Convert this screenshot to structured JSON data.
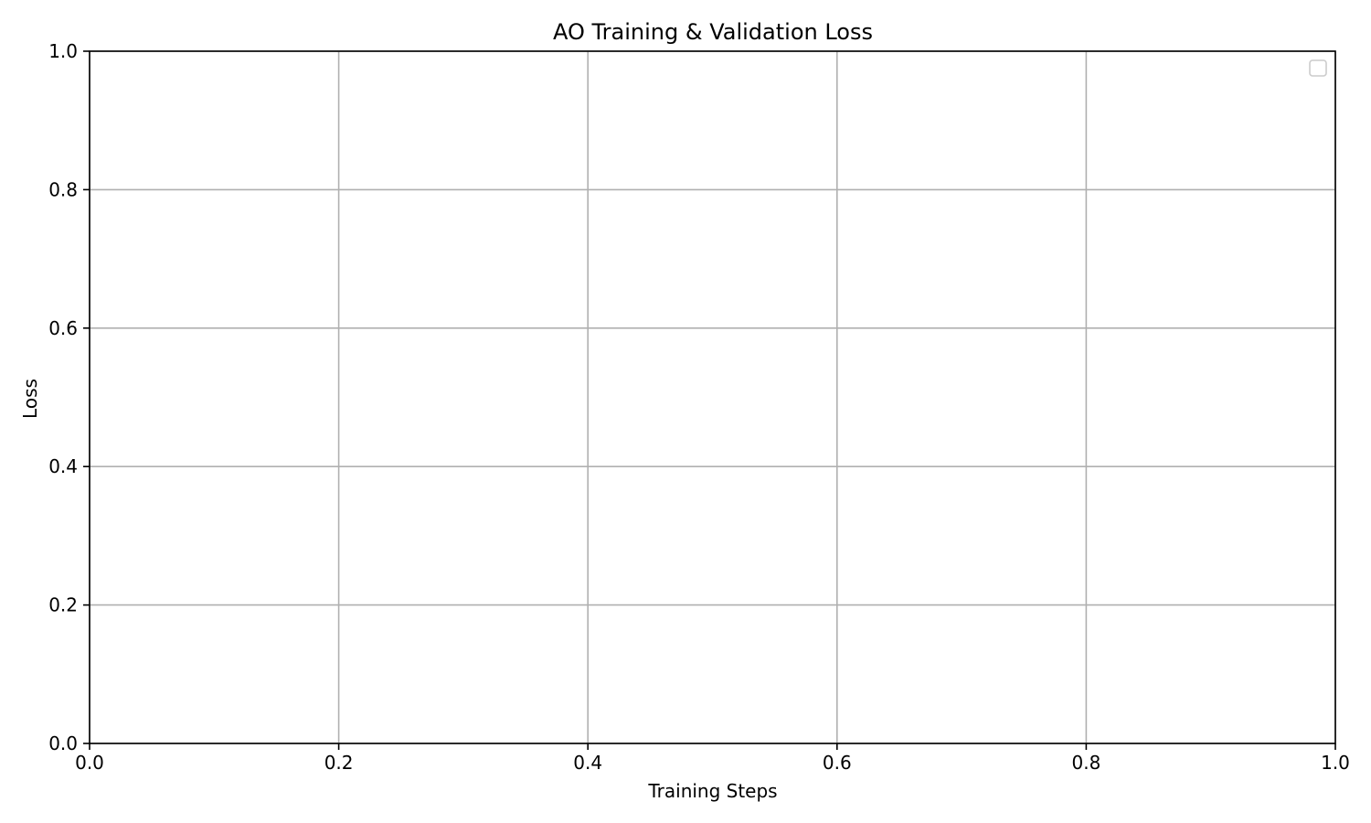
{
  "chart_data": {
    "type": "line",
    "title": "AO Training & Validation Loss",
    "xlabel": "Training Steps",
    "ylabel": "Loss",
    "xlim": [
      0,
      1
    ],
    "ylim": [
      0,
      1
    ],
    "xticks": [
      0.0,
      0.2,
      0.4,
      0.6,
      0.8,
      1.0
    ],
    "yticks": [
      0.0,
      0.2,
      0.4,
      0.6,
      0.8,
      1.0
    ],
    "xtick_labels": [
      "0.0",
      "0.2",
      "0.4",
      "0.6",
      "0.8",
      "1.0"
    ],
    "ytick_labels": [
      "0.0",
      "0.2",
      "0.4",
      "0.6",
      "0.8",
      "1.0"
    ],
    "grid": true,
    "legend": {
      "location": "top-right",
      "entries": []
    },
    "series": [],
    "colors": {
      "grid": "#b0b0b0",
      "axes": "#000000",
      "legend_border": "#cccccc"
    }
  }
}
